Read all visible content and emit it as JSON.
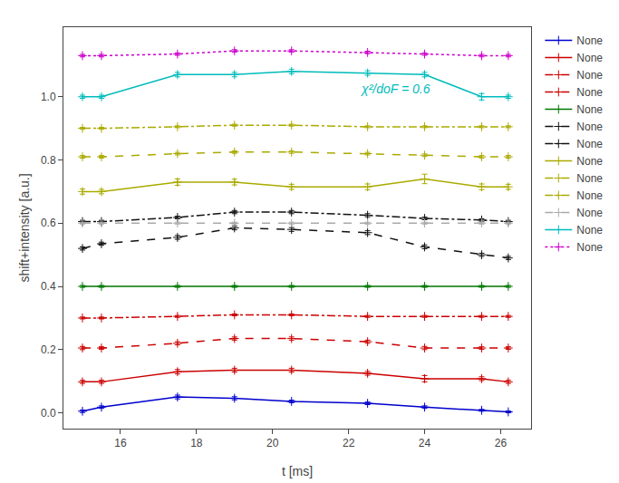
{
  "chart_data": {
    "type": "line",
    "title": "",
    "x_label": "t [ms]",
    "y_label": "shift+intensity [a.u.]",
    "annotations": [
      {
        "text": "χ²/doF = 0.6",
        "color": "#00bbbb"
      }
    ],
    "xlim": [
      14.5,
      26.8
    ],
    "ylim": [
      -0.05,
      1.22
    ],
    "xticks": [
      16,
      18,
      20,
      22,
      24,
      26
    ],
    "yticks": [
      {
        "value": 0.0,
        "label": "0.0"
      },
      0.2,
      0.4,
      0.6,
      0.8,
      {
        "value": 1.0,
        "label": "1.0"
      }
    ],
    "grid": false,
    "legend": "right",
    "marker": "plus",
    "x": [
      15.0,
      15.5,
      17.5,
      19.0,
      20.5,
      22.5,
      24.0,
      25.5,
      26.2
    ],
    "series": [
      {
        "name": "None",
        "color": "#0000cc",
        "line_style": "solid",
        "values": [
          0.005,
          0.018,
          0.05,
          0.046,
          0.036,
          0.03,
          0.018,
          0.008,
          0.003
        ],
        "yerr": [
          0.004,
          0.004,
          0.006,
          0.005,
          0.004,
          0.004,
          0.004,
          0.003,
          0.003
        ]
      },
      {
        "name": "None",
        "color": "#cc0000",
        "line_style": "solid",
        "values": [
          0.098,
          0.098,
          0.13,
          0.135,
          0.135,
          0.125,
          0.108,
          0.108,
          0.098
        ],
        "yerr": [
          0.005,
          0.005,
          0.007,
          0.006,
          0.006,
          0.006,
          0.01,
          0.006,
          0.005
        ]
      },
      {
        "name": "None",
        "color": "#cc0000",
        "line_style": "dashed",
        "values": [
          0.205,
          0.205,
          0.22,
          0.235,
          0.235,
          0.225,
          0.205,
          0.205,
          0.205
        ],
        "yerr": [
          0.005,
          0.004,
          0.005,
          0.005,
          0.005,
          0.005,
          0.005,
          0.004,
          0.004
        ]
      },
      {
        "name": "None",
        "color": "#cc0000",
        "line_style": "dashdot",
        "values": [
          0.3,
          0.3,
          0.305,
          0.31,
          0.31,
          0.305,
          0.305,
          0.305,
          0.305
        ],
        "yerr": [
          0.003,
          0.003,
          0.003,
          0.003,
          0.003,
          0.003,
          0.003,
          0.003,
          0.003
        ]
      },
      {
        "name": "None",
        "color": "#007700",
        "line_style": "solid",
        "values": [
          0.4,
          0.4,
          0.4,
          0.4,
          0.4,
          0.4,
          0.4,
          0.4,
          0.4
        ],
        "yerr": [
          0.003,
          0.003,
          0.003,
          0.003,
          0.003,
          0.003,
          0.003,
          0.003,
          0.003
        ]
      },
      {
        "name": "None",
        "color": "#111111",
        "line_style": "dashed",
        "values": [
          0.52,
          0.535,
          0.555,
          0.585,
          0.58,
          0.57,
          0.525,
          0.5,
          0.49
        ],
        "yerr": [
          0.005,
          0.005,
          0.006,
          0.006,
          0.006,
          0.006,
          0.006,
          0.005,
          0.005
        ]
      },
      {
        "name": "None",
        "color": "#111111",
        "line_style": "dashdot",
        "values": [
          0.605,
          0.605,
          0.618,
          0.635,
          0.635,
          0.625,
          0.615,
          0.61,
          0.605
        ],
        "yerr": [
          0.004,
          0.004,
          0.004,
          0.005,
          0.005,
          0.005,
          0.004,
          0.004,
          0.004
        ]
      },
      {
        "name": "None",
        "color": "#aaaa00",
        "line_style": "solid",
        "values": [
          0.7,
          0.7,
          0.73,
          0.73,
          0.715,
          0.715,
          0.74,
          0.715,
          0.715
        ],
        "yerr": [
          0.008,
          0.007,
          0.01,
          0.009,
          0.008,
          0.009,
          0.015,
          0.009,
          0.008
        ]
      },
      {
        "name": "None",
        "color": "#aaaa00",
        "line_style": "dashed",
        "values": [
          0.81,
          0.81,
          0.82,
          0.825,
          0.825,
          0.82,
          0.815,
          0.81,
          0.81
        ],
        "yerr": [
          0.004,
          0.004,
          0.004,
          0.004,
          0.004,
          0.004,
          0.004,
          0.004,
          0.004
        ]
      },
      {
        "name": "None",
        "color": "#aaaa00",
        "line_style": "dashdot",
        "values": [
          0.9,
          0.9,
          0.905,
          0.91,
          0.91,
          0.905,
          0.905,
          0.905,
          0.905
        ],
        "yerr": [
          0.003,
          0.003,
          0.003,
          0.003,
          0.003,
          0.003,
          0.003,
          0.003,
          0.003
        ]
      },
      {
        "name": "None",
        "color": "#aaaaaa",
        "line_style": "dashed",
        "values": [
          0.6,
          0.6,
          0.6,
          0.6,
          0.6,
          0.6,
          0.6,
          0.6,
          0.6
        ],
        "yerr": [
          0.003,
          0.003,
          0.003,
          0.003,
          0.003,
          0.003,
          0.003,
          0.003,
          0.003
        ]
      },
      {
        "name": "None",
        "color": "#00bbbb",
        "line_style": "solid",
        "values": [
          1.0,
          1.0,
          1.07,
          1.07,
          1.08,
          1.075,
          1.07,
          1.0,
          1.0
        ],
        "yerr": [
          0.005,
          0.005,
          0.007,
          0.007,
          0.007,
          0.007,
          0.007,
          0.01,
          0.005
        ]
      },
      {
        "name": "None",
        "color": "#cc00cc",
        "line_style": "dotted",
        "values": [
          1.13,
          1.13,
          1.135,
          1.145,
          1.145,
          1.14,
          1.135,
          1.13,
          1.13
        ],
        "yerr": [
          0.004,
          0.004,
          0.004,
          0.004,
          0.004,
          0.004,
          0.004,
          0.004,
          0.004
        ]
      }
    ]
  }
}
